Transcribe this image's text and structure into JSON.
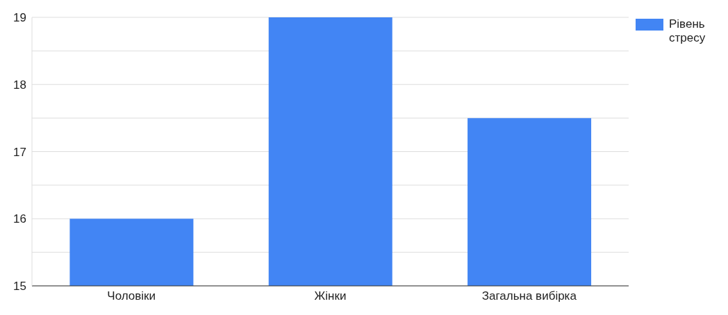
{
  "chart_data": {
    "type": "bar",
    "categories": [
      "Чоловіки",
      "Жінки",
      "Загальна вибірка"
    ],
    "series": [
      {
        "name": "Рівень стресу",
        "color": "#4285f4",
        "values": [
          16,
          19,
          17.5
        ]
      }
    ],
    "ylim": [
      15,
      19
    ],
    "yticks": [
      15,
      {
        "value": 15.5,
        "label": null
      },
      16,
      {
        "value": 16.5,
        "label": null
      },
      17,
      {
        "value": 17.5,
        "label": null
      },
      18,
      {
        "value": 18.5,
        "label": null
      },
      19
    ],
    "grid": "y",
    "legend": "top right"
  }
}
